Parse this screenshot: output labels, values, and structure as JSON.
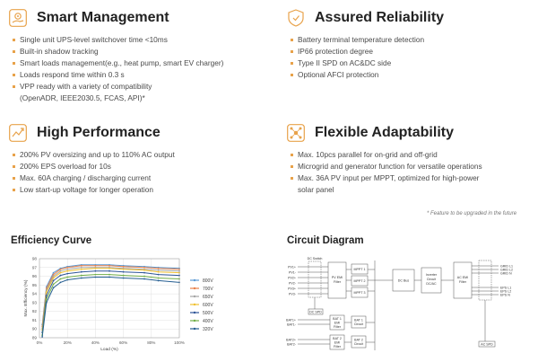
{
  "features": [
    {
      "title": "Smart Management",
      "icon": "gear-hand-icon",
      "items": [
        "Single unit UPS-level switchover time <10ms",
        "Built-in shadow tracking",
        "Smart loads management(e.g., heat pump, smart EV charger)",
        "Loads respond time within 0.3 s",
        "VPP ready with a variety of compatibility",
        "(OpenADR, IEEE2030.5, FCAS, API)*"
      ]
    },
    {
      "title": "Assured Reliability",
      "icon": "shield-icon",
      "items": [
        "Battery terminal temperature detection",
        "IP66 protection degree",
        "Type II SPD on AC&DC side",
        "Optional AFCI protection"
      ]
    },
    {
      "title": "High Performance",
      "icon": "performance-pen-icon",
      "items": [
        "200% PV oversizing and up to 110% AC output",
        "200% EPS overload for 10s",
        "Max. 60A charging / discharging current",
        "Low start-up voltage for longer operation"
      ]
    },
    {
      "title": "Flexible Adaptability",
      "icon": "network-nodes-icon",
      "items": [
        "Max. 10pcs parallel for on-grid and off-grid",
        "Microgrid and generator function for versatile operations",
        "Max. 36A PV input per MPPT, optimized for high-power",
        "solar panel"
      ]
    }
  ],
  "footnote": "* Feature to be upgraded in the future",
  "accent_color": "#e8a24a",
  "efficiency": {
    "title": "Efficiency Curve",
    "chart_data": {
      "type": "line",
      "xlabel": "Load (%)",
      "ylabel": "Max. Efficiency (%)",
      "x_ticks": [
        "0%",
        "20%",
        "40%",
        "60%",
        "80%",
        "100%"
      ],
      "y_ticks": [
        "89",
        "90",
        "91",
        "92",
        "93",
        "94",
        "95",
        "96",
        "97",
        "98"
      ],
      "xlim": [
        0,
        100
      ],
      "ylim": [
        89,
        98
      ],
      "grid": true,
      "legend_position": "right",
      "x": [
        2,
        5,
        10,
        15,
        20,
        30,
        40,
        50,
        60,
        75,
        85,
        100
      ],
      "series": [
        {
          "name": "800V",
          "color": "#5b9bd5",
          "values": [
            90.5,
            94.8,
            96.4,
            96.9,
            97.1,
            97.3,
            97.3,
            97.3,
            97.2,
            97.1,
            97.0,
            96.9
          ]
        },
        {
          "name": "700V",
          "color": "#e8804a",
          "values": [
            90.3,
            94.6,
            96.2,
            96.8,
            97.0,
            97.2,
            97.2,
            97.2,
            97.1,
            97.0,
            96.9,
            96.8
          ]
        },
        {
          "name": "650V",
          "color": "#a5a5a5",
          "values": [
            90.1,
            94.4,
            96.0,
            96.6,
            96.8,
            97.0,
            97.0,
            97.0,
            96.9,
            96.8,
            96.7,
            96.6
          ]
        },
        {
          "name": "600V",
          "color": "#f0c030",
          "values": [
            89.9,
            94.2,
            95.8,
            96.4,
            96.6,
            96.8,
            96.9,
            96.9,
            96.8,
            96.7,
            96.5,
            96.4
          ]
        },
        {
          "name": "500V",
          "color": "#2e5597",
          "values": [
            89.6,
            93.8,
            95.5,
            96.1,
            96.3,
            96.5,
            96.6,
            96.6,
            96.5,
            96.4,
            96.2,
            96.1
          ]
        },
        {
          "name": "400V",
          "color": "#70ad47",
          "values": [
            89.3,
            93.4,
            95.1,
            95.7,
            95.9,
            96.1,
            96.2,
            96.2,
            96.1,
            96.0,
            95.8,
            95.7
          ]
        },
        {
          "name": "320V",
          "color": "#255e91",
          "values": [
            89.1,
            93.0,
            94.7,
            95.3,
            95.6,
            95.8,
            95.9,
            95.9,
            95.8,
            95.7,
            95.5,
            95.3
          ]
        }
      ]
    }
  },
  "circuit": {
    "title": "Circuit Diagram",
    "labels": {
      "dc_switch": "DC Switch",
      "pv_inputs": [
        "PV1+",
        "PV1-",
        "PV2+",
        "PV2-",
        "PV3+",
        "PV3-"
      ],
      "pv_emi": [
        "PV EMI",
        "Filter"
      ],
      "mppt": [
        "MPPT 1",
        "MPPT 2",
        "MPPT 3"
      ],
      "dc_spd": "DC SPD",
      "dc_bus": "DC Bus",
      "inverter": [
        "Inverter",
        "Circuit",
        "DC/AC"
      ],
      "ac_emi": [
        "AC EMI",
        "Filter"
      ],
      "grid_out": [
        "GRID L1",
        "GRID L2",
        "GRID N"
      ],
      "eps_out": [
        "EPS L1",
        "EPS L2",
        "EPS N"
      ],
      "bat_inputs": [
        "BAT1+",
        "BAT1-",
        "BAT2+",
        "BAT2-"
      ],
      "bat1_emi": [
        "BAT 1",
        "EMI",
        "Filter"
      ],
      "bat2_emi": [
        "BAT 2",
        "EMI",
        "Filter"
      ],
      "bat1_circuit": [
        "BAT 1",
        "Circuit"
      ],
      "bat2_circuit": [
        "BAT 2",
        "Circuit"
      ],
      "ac_spd": "AC SPD"
    }
  }
}
